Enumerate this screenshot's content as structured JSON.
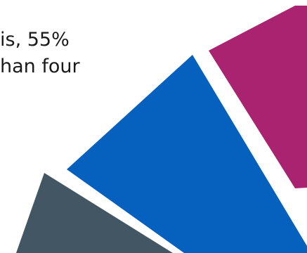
{
  "text": {
    "line_1": "is, 55%",
    "line_2": "han four"
  },
  "colors": {
    "magenta": "#A92370",
    "blue": "#0560BE",
    "slate": "#425663",
    "text": "#1a1a1a",
    "background": "#ffffff"
  }
}
